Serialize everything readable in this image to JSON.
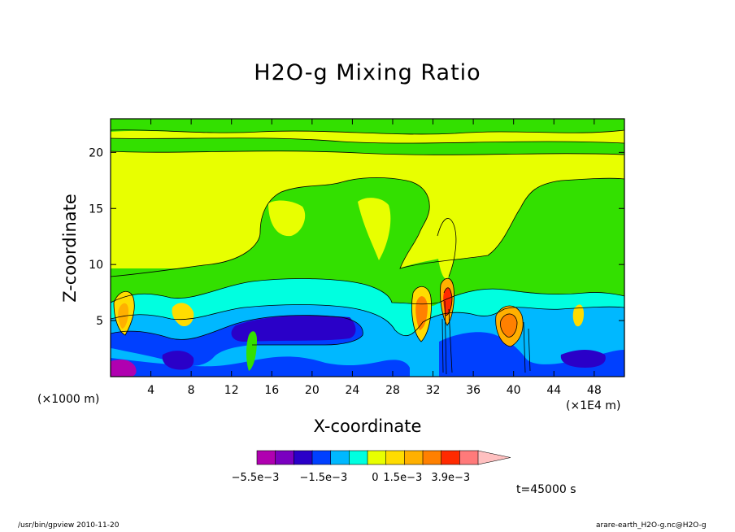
{
  "chart_data": {
    "type": "heatmap",
    "title": "H2O-g Mixing Ratio",
    "xlabel": "X-coordinate",
    "ylabel": "Z-coordinate",
    "x_unit_note": "(×1000 m)",
    "x_scale_note": "(×1E4 m)",
    "xlim": [
      0,
      51
    ],
    "ylim": [
      0,
      23
    ],
    "x_ticks": [
      4,
      8,
      12,
      16,
      20,
      24,
      28,
      32,
      36,
      40,
      44,
      48
    ],
    "y_ticks": [
      5,
      10,
      15,
      20
    ],
    "colorbar": {
      "colors": [
        "#b000b0",
        "#7a00c0",
        "#2a00c8",
        "#0040ff",
        "#00b8ff",
        "#00ffe0",
        "#e8ff00",
        "#ffdc00",
        "#ffb000",
        "#ff8000",
        "#ff2a00",
        "#ff7a7a",
        "#ffc0c0"
      ],
      "labels": [
        "−5.5e−3",
        "−1.5e−3",
        "0",
        "1.5e−3",
        "3.9e−3"
      ]
    },
    "time_label": "t=45000 s",
    "footer_left": "/usr/bin/gpview  2010-11-20",
    "footer_right": "arare-earth_H2O-g.nc@H2O-g"
  }
}
